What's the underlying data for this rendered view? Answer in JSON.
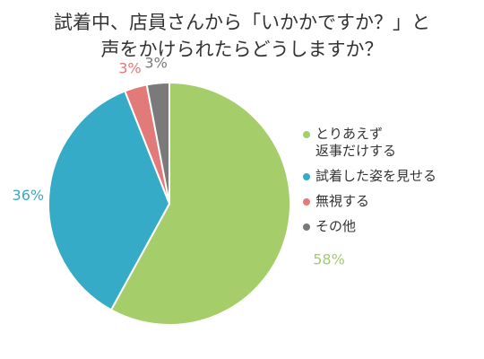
{
  "chart_data": {
    "type": "pie",
    "title_lines": [
      "試着中、店員さんから「いかかですか？」と",
      "声をかけられたらどうしますか？"
    ],
    "slices": [
      {
        "label_lines": [
          "とりあえず",
          "返事だけする"
        ],
        "value": 58,
        "value_label": "58%",
        "color": "#a5cd6a",
        "label_color": "#a5cd6a"
      },
      {
        "label_lines": [
          "試着した姿を見せる"
        ],
        "value": 36,
        "value_label": "36%",
        "color": "#35abc8",
        "label_color": "#35abc8"
      },
      {
        "label_lines": [
          "無視する"
        ],
        "value": 3,
        "value_label": "3%",
        "color": "#e37a7a",
        "label_color": "#e37a7a"
      },
      {
        "label_lines": [
          "その他"
        ],
        "value": 3,
        "value_label": "3%",
        "color": "#7a7a7a",
        "label_color": "#7a7a7a"
      }
    ],
    "legend_position": "right"
  }
}
